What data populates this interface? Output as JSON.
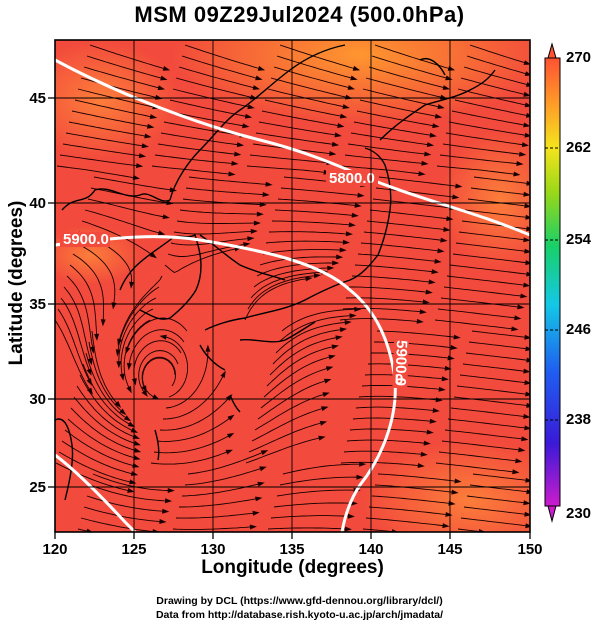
{
  "title": "MSM 09Z29Jul2024 (500.0hPa)",
  "x_axis": {
    "label": "Longitude (degrees)",
    "ticks": [
      "120",
      "125",
      "130",
      "135",
      "140",
      "145",
      "150"
    ],
    "range": [
      120,
      150
    ]
  },
  "y_axis": {
    "label": "Latitude  (degrees)",
    "ticks": [
      "25",
      "30",
      "35",
      "40",
      "45"
    ],
    "range": [
      22.4,
      47.6
    ]
  },
  "colorbar": {
    "ticks": [
      "270",
      "262",
      "254",
      "246",
      "238",
      "230"
    ],
    "range": [
      230,
      270
    ]
  },
  "contours": [
    {
      "label": "5800.0"
    },
    {
      "label": "5900.0"
    },
    {
      "label": "5900.0",
      "label2": "0"
    }
  ],
  "credits": {
    "line1": "Drawing by DCL (https://www.gfd-dennou.org/library/dcl/)",
    "line2": "Data from http://database.rish.kyoto-u.ac.jp/arch/jmadata/"
  }
}
